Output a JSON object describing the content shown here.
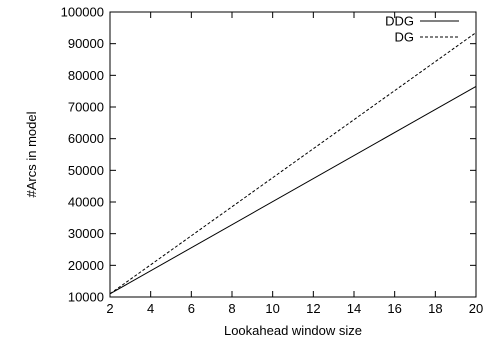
{
  "chart_data": {
    "type": "line",
    "title": "",
    "xlabel": "Lookahead window size",
    "ylabel": "#Arcs in model",
    "xlim": [
      2,
      20
    ],
    "ylim": [
      10000,
      100000
    ],
    "x_ticks": [
      2,
      4,
      6,
      8,
      10,
      12,
      14,
      16,
      18,
      20
    ],
    "x_tick_labels": [
      "2",
      "4",
      "6",
      "8",
      "10",
      "12",
      "14",
      "16",
      "18",
      "20"
    ],
    "y_ticks": [
      10000,
      20000,
      30000,
      40000,
      50000,
      60000,
      70000,
      80000,
      90000,
      100000
    ],
    "y_tick_labels": [
      "10000",
      "20000",
      "30000",
      "40000",
      "50000",
      "60000",
      "70000",
      "80000",
      "90000",
      "100000"
    ],
    "grid": false,
    "legend_position": "top-right",
    "series": [
      {
        "name": "DDG",
        "style": "solid",
        "color": "#000000",
        "x": [
          2,
          20
        ],
        "y": [
          11000,
          76500
        ]
      },
      {
        "name": "DG",
        "style": "dashed",
        "color": "#000000",
        "x": [
          2,
          20
        ],
        "y": [
          11000,
          93500
        ]
      }
    ]
  }
}
